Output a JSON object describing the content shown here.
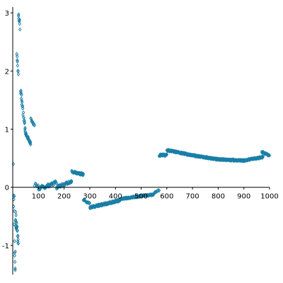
{
  "chart_data": {
    "type": "scatter",
    "title": "",
    "xlabel": "",
    "ylabel": "",
    "xlim": [
      0,
      1000
    ],
    "ylim": [
      -1.5,
      3.1
    ],
    "grid": false,
    "marker": "diamond",
    "color": "#1a7fa6",
    "x_ticks": [
      100,
      200,
      300,
      400,
      500,
      600,
      700,
      800,
      900,
      1000
    ],
    "y_ticks": [
      -1,
      0,
      1,
      2,
      3
    ],
    "x_tick_labels": [
      "100",
      "200",
      "300",
      "400",
      "500",
      "600",
      "700",
      "800",
      "900",
      "1000"
    ],
    "y_tick_labels": [
      "-1",
      "0",
      "1",
      "2",
      "3"
    ],
    "clusters": [
      {
        "x_range": [
          3,
          10
        ],
        "y_start": 0.2,
        "y_end": -1.5,
        "count": 14,
        "jitter": 0.6
      },
      {
        "x_range": [
          10,
          22
        ],
        "y_start": -0.5,
        "y_end": -0.9,
        "count": 22,
        "jitter": 0.25
      },
      {
        "x_range": [
          22,
          28
        ],
        "y_start": 3.0,
        "y_end": 2.75,
        "count": 8,
        "jitter": 0.12
      },
      {
        "x_range": [
          16,
          22
        ],
        "y_start": 2.3,
        "y_end": 1.95,
        "count": 8,
        "jitter": 0.1
      },
      {
        "x_range": [
          30,
          48
        ],
        "y_start": 1.7,
        "y_end": 1.0,
        "count": 22,
        "jitter": 0.12
      },
      {
        "x_range": [
          48,
          70
        ],
        "y_start": 0.95,
        "y_end": 0.75,
        "count": 28,
        "jitter": 0.05
      },
      {
        "x_range": [
          70,
          85
        ],
        "y_start": 1.18,
        "y_end": 1.05,
        "count": 10,
        "jitter": 0.05
      },
      {
        "x_range": [
          85,
          100
        ],
        "y_start": 0.05,
        "y_end": 0.02,
        "count": 6,
        "jitter": 0.05
      },
      {
        "x_range": [
          100,
          170
        ],
        "y_start": -0.02,
        "y_end": 0.08,
        "count": 40,
        "jitter": 0.06
      },
      {
        "x_range": [
          170,
          230
        ],
        "y_start": 0.0,
        "y_end": 0.1,
        "count": 40,
        "jitter": 0.05
      },
      {
        "x_range": [
          230,
          275
        ],
        "y_start": 0.27,
        "y_end": 0.22,
        "count": 50,
        "jitter": 0.03
      },
      {
        "x_range": [
          275,
          300
        ],
        "y_start": -0.22,
        "y_end": -0.28,
        "count": 12,
        "jitter": 0.03
      },
      {
        "x_range": [
          300,
          420
        ],
        "y_start": -0.35,
        "y_end": -0.22,
        "count": 130,
        "jitter": 0.03
      },
      {
        "x_range": [
          420,
          550
        ],
        "y_start": -0.2,
        "y_end": -0.12,
        "count": 110,
        "jitter": 0.02
      },
      {
        "x_range": [
          550,
          570
        ],
        "y_start": -0.1,
        "y_end": -0.05,
        "count": 8,
        "jitter": 0.02
      },
      {
        "x_range": [
          570,
          600
        ],
        "y_start": 0.55,
        "y_end": 0.55,
        "count": 30,
        "jitter": 0.03
      },
      {
        "x_range": [
          600,
          700
        ],
        "y_start": 0.64,
        "y_end": 0.55,
        "count": 110,
        "jitter": 0.02
      },
      {
        "x_range": [
          700,
          800
        ],
        "y_start": 0.55,
        "y_end": 0.48,
        "count": 110,
        "jitter": 0.02
      },
      {
        "x_range": [
          800,
          900
        ],
        "y_start": 0.48,
        "y_end": 0.46,
        "count": 110,
        "jitter": 0.02
      },
      {
        "x_range": [
          900,
          975
        ],
        "y_start": 0.46,
        "y_end": 0.52,
        "count": 80,
        "jitter": 0.02
      },
      {
        "x_range": [
          970,
          1000
        ],
        "y_start": 0.6,
        "y_end": 0.55,
        "count": 20,
        "jitter": 0.03
      }
    ]
  }
}
